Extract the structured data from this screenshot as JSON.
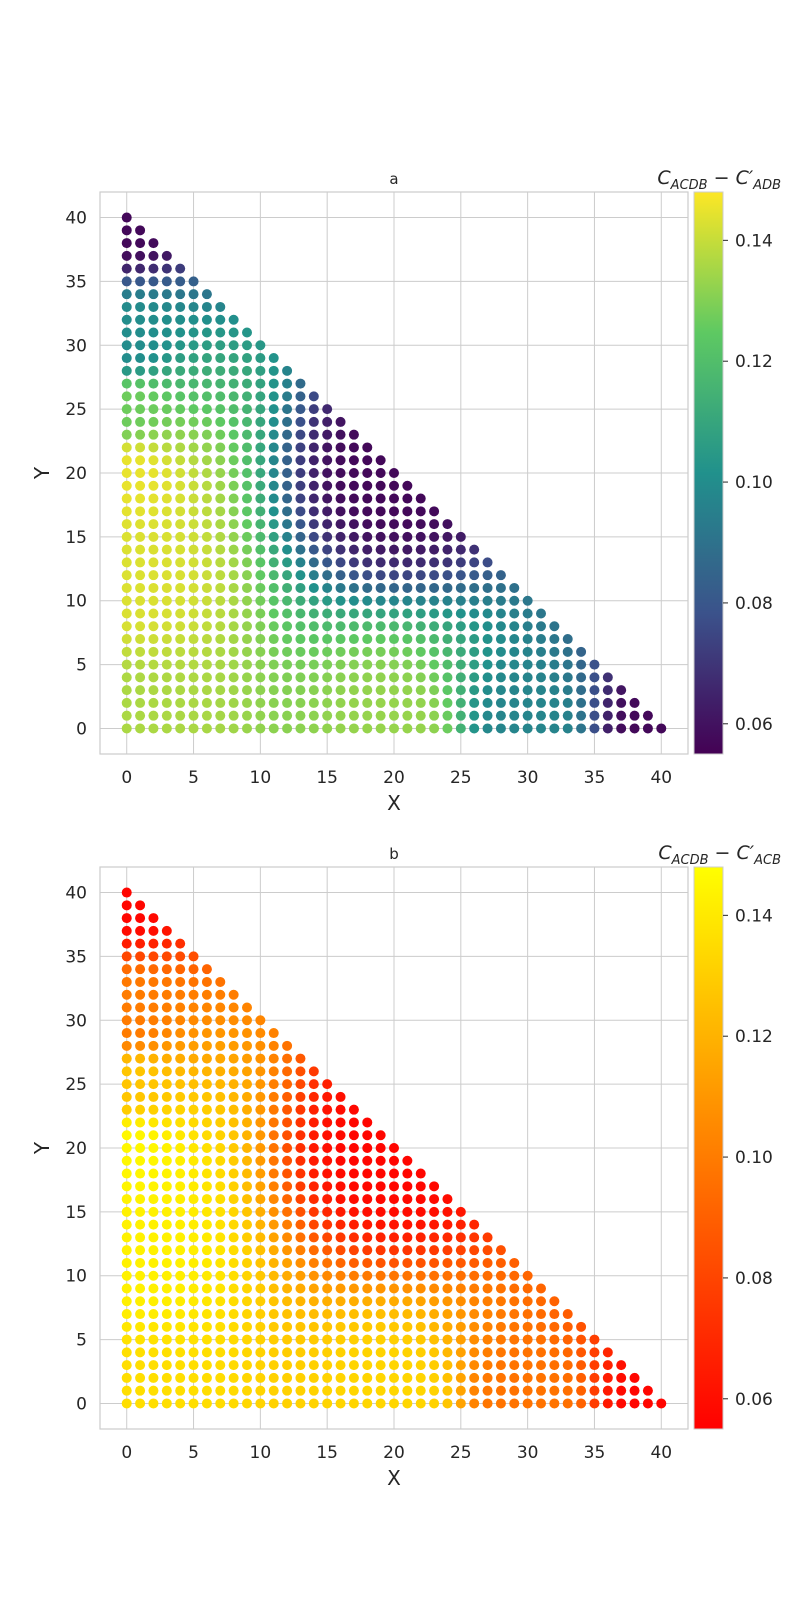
{
  "chart_data": [
    {
      "type": "scatter",
      "title": "a",
      "xlabel": "X",
      "ylabel": "Y",
      "xlim": [
        -2,
        42
      ],
      "ylim": [
        -2,
        42
      ],
      "xticks": [
        0,
        5,
        10,
        15,
        20,
        25,
        30,
        35,
        40
      ],
      "yticks": [
        0,
        5,
        10,
        15,
        20,
        25,
        30,
        35,
        40
      ],
      "grid": true,
      "domain": "triangle: integer points with x + y <= 40",
      "colorbar": {
        "label_main": "C",
        "label_main_sub": "ACDB",
        "label_minus": " − ",
        "label_second": "C′",
        "label_second_sub": "ADB",
        "colormap": "viridis",
        "range": [
          0.055,
          0.148
        ],
        "ticks": [
          "0.06",
          "0.08",
          "0.10",
          "0.12",
          "0.14"
        ],
        "stops": [
          "#440154",
          "#3b528b",
          "#21918c",
          "#5ec962",
          "#fde725"
        ]
      },
      "model_points": [
        {
          "x": 0,
          "y": 40,
          "value": 0.057
        },
        {
          "x": 40,
          "y": 0,
          "value": 0.057
        },
        {
          "x": 0,
          "y": 30,
          "value": 0.1
        },
        {
          "x": 0,
          "y": 25,
          "value": 0.127
        },
        {
          "x": 0,
          "y": 20,
          "value": 0.145
        },
        {
          "x": 0,
          "y": 12,
          "value": 0.143
        },
        {
          "x": 0,
          "y": 0,
          "value": 0.136
        },
        {
          "x": 20,
          "y": 0,
          "value": 0.133
        },
        {
          "x": 30,
          "y": 0,
          "value": 0.097
        },
        {
          "x": 20,
          "y": 20,
          "value": 0.057
        }
      ]
    },
    {
      "type": "scatter",
      "title": "b",
      "xlabel": "X",
      "ylabel": "Y",
      "xlim": [
        -2,
        42
      ],
      "ylim": [
        -2,
        42
      ],
      "xticks": [
        0,
        5,
        10,
        15,
        20,
        25,
        30,
        35,
        40
      ],
      "yticks": [
        0,
        5,
        10,
        15,
        20,
        25,
        30,
        35,
        40
      ],
      "grid": true,
      "domain": "triangle: integer points with x + y <= 40",
      "colorbar": {
        "label_main": "C",
        "label_main_sub": "ACDB",
        "label_minus": " − ",
        "label_second": "C′",
        "label_second_sub": "ACB",
        "colormap": "autumn",
        "range": [
          0.055,
          0.148
        ],
        "ticks": [
          "0.06",
          "0.08",
          "0.10",
          "0.12",
          "0.14"
        ],
        "stops": [
          "#ff0000",
          "#ffff00"
        ]
      },
      "model_points": [
        {
          "x": 0,
          "y": 40,
          "value": 0.057
        },
        {
          "x": 40,
          "y": 0,
          "value": 0.057
        },
        {
          "x": 0,
          "y": 30,
          "value": 0.1
        },
        {
          "x": 0,
          "y": 25,
          "value": 0.127
        },
        {
          "x": 0,
          "y": 20,
          "value": 0.145
        },
        {
          "x": 0,
          "y": 12,
          "value": 0.143
        },
        {
          "x": 0,
          "y": 0,
          "value": 0.136
        },
        {
          "x": 20,
          "y": 0,
          "value": 0.133
        },
        {
          "x": 30,
          "y": 0,
          "value": 0.097
        },
        {
          "x": 20,
          "y": 20,
          "value": 0.057
        }
      ]
    }
  ]
}
